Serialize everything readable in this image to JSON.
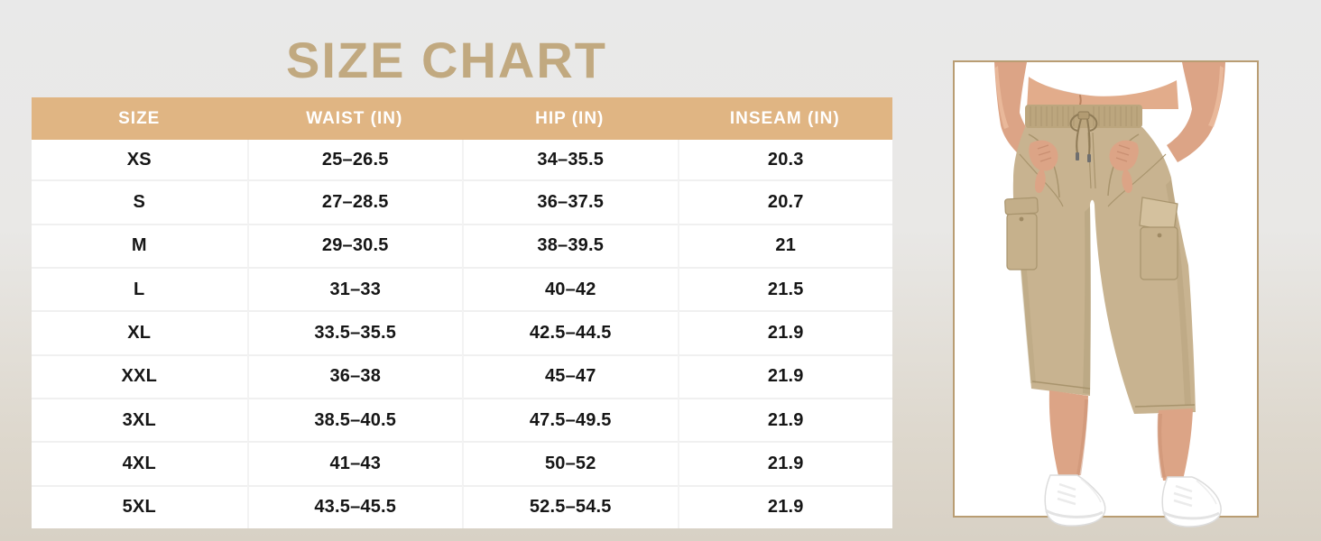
{
  "chart_data": {
    "type": "table",
    "title": "SIZE CHART",
    "columns": [
      "SIZE",
      "WAIST (IN)",
      "HIP (IN)",
      "INSEAM (IN)"
    ],
    "rows": [
      [
        "XS",
        "25–26.5",
        "34–35.5",
        "20.3"
      ],
      [
        "S",
        "27–28.5",
        "36–37.5",
        "20.7"
      ],
      [
        "M",
        "29–30.5",
        "38–39.5",
        "21"
      ],
      [
        "L",
        "31–33",
        "40–42",
        "21.5"
      ],
      [
        "XL",
        "33.5–35.5",
        "42.5–44.5",
        "21.9"
      ],
      [
        "XXL",
        "36–38",
        "45–47",
        "21.9"
      ],
      [
        "3XL",
        "38.5–40.5",
        "47.5–49.5",
        "21.9"
      ],
      [
        "4XL",
        "41–43",
        "50–52",
        "21.9"
      ],
      [
        "5XL",
        "43.5–45.5",
        "52.5–54.5",
        "21.9"
      ]
    ],
    "layout": {
      "header_position": "top",
      "grid": "light-gray-separators"
    }
  },
  "product_image": {
    "description": "Woman in white crop top wearing khaki drawstring capri cargo pants with side flap pockets and white sneakers, hands in front pockets"
  },
  "colors": {
    "title": "#c1a980",
    "table_header_bg": "#e0b583",
    "table_header_text": "#ffffff",
    "table_cell_text": "#161616",
    "frame_border": "#b99d73",
    "background_top": "#e9e9e9",
    "background_bottom": "#d8d1c5",
    "pants_khaki": "#c8b390"
  }
}
